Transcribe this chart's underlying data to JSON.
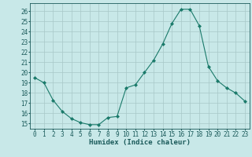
{
  "x": [
    0,
    1,
    2,
    3,
    4,
    5,
    6,
    7,
    8,
    9,
    10,
    11,
    12,
    13,
    14,
    15,
    16,
    17,
    18,
    19,
    20,
    21,
    22,
    23
  ],
  "y": [
    19.5,
    19.0,
    17.3,
    16.2,
    15.5,
    15.1,
    14.9,
    14.9,
    15.6,
    15.7,
    18.5,
    18.8,
    20.0,
    21.2,
    22.8,
    24.8,
    26.2,
    26.2,
    24.6,
    20.6,
    19.2,
    18.5,
    18.0,
    17.2
  ],
  "line_color": "#1a7a6a",
  "marker": "D",
  "marker_size": 2,
  "bg_color": "#c8e8e8",
  "grid_color": "#a8c8c8",
  "xlabel": "Humidex (Indice chaleur)",
  "xlim": [
    -0.5,
    23.5
  ],
  "ylim": [
    14.5,
    26.8
  ],
  "yticks": [
    15,
    16,
    17,
    18,
    19,
    20,
    21,
    22,
    23,
    24,
    25,
    26
  ],
  "xticks": [
    0,
    1,
    2,
    3,
    4,
    5,
    6,
    7,
    8,
    9,
    10,
    11,
    12,
    13,
    14,
    15,
    16,
    17,
    18,
    19,
    20,
    21,
    22,
    23
  ],
  "xlabel_fontsize": 6.5,
  "tick_fontsize": 5.5,
  "tick_color": "#1a5a5a",
  "spine_color": "#1a5a5a",
  "lw": 0.8
}
